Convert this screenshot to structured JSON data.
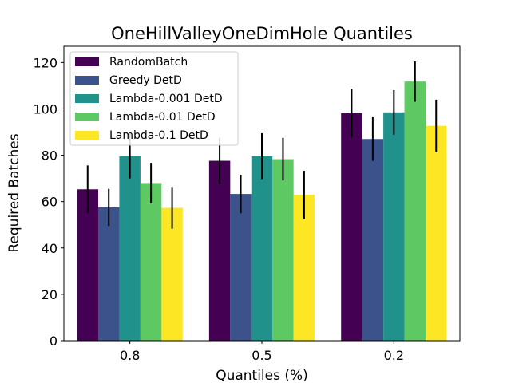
{
  "chart_data": {
    "type": "bar",
    "title": "OneHillValleyOneDimHole Quantiles",
    "xlabel": "Quantiles (%)",
    "ylabel": "Required Batches",
    "categories": [
      "0.8",
      "0.5",
      "0.2"
    ],
    "ylim": [
      0,
      127
    ],
    "yticks": [
      0,
      20,
      40,
      60,
      80,
      100,
      120
    ],
    "grid": false,
    "legend_position": "top-left",
    "error_bars": true,
    "series": [
      {
        "name": "RandomBatch",
        "color": "#440154",
        "values": [
          65.3,
          77.6,
          98.1
        ],
        "errors": [
          10.3,
          10.0,
          10.5
        ]
      },
      {
        "name": "Greedy DetD",
        "color": "#3b528b",
        "values": [
          57.5,
          63.3,
          87.0
        ],
        "errors": [
          8.0,
          8.3,
          9.4
        ]
      },
      {
        "name": "Lambda-0.001 DetD",
        "color": "#21918c",
        "values": [
          79.6,
          79.6,
          98.5
        ],
        "errors": [
          9.6,
          9.9,
          9.6
        ]
      },
      {
        "name": "Lambda-0.01 DetD",
        "color": "#5ec962",
        "values": [
          68.0,
          78.3,
          111.8
        ],
        "errors": [
          8.7,
          9.2,
          8.7
        ]
      },
      {
        "name": "Lambda-0.1 DetD",
        "color": "#fde725",
        "values": [
          57.3,
          62.9,
          92.7
        ],
        "errors": [
          9.0,
          10.4,
          11.3
        ]
      }
    ]
  }
}
